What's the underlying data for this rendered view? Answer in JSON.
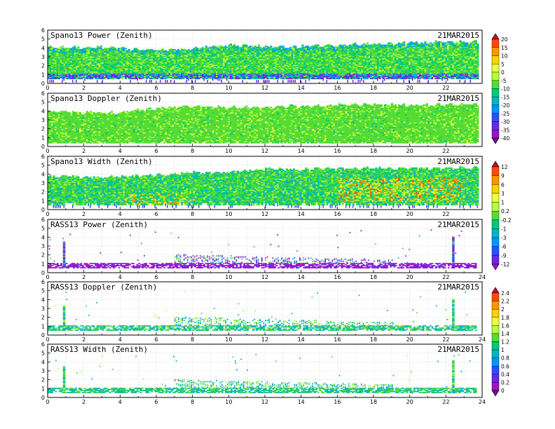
{
  "chart_data": [
    {
      "type": "heatmap",
      "title": "Spano13 Power (Zenith)",
      "date": "21MAR2015",
      "xlim": [
        0,
        24
      ],
      "ylim": [
        0,
        6
      ],
      "x_ticks": [
        "0",
        "2",
        "4",
        "6",
        "8",
        "10",
        "12",
        "14",
        "16",
        "18",
        "20",
        "22"
      ],
      "y_ticks": [
        "0",
        "1",
        "2",
        "3",
        "4",
        "5",
        "6"
      ],
      "grid": true,
      "top_height_km": [
        [
          0,
          3.9
        ],
        [
          2,
          3.9
        ],
        [
          4,
          3.9
        ],
        [
          6,
          3.6
        ],
        [
          8,
          3.8
        ],
        [
          10,
          4.2
        ],
        [
          12,
          4.0
        ],
        [
          14,
          4.0
        ],
        [
          16,
          4.2
        ],
        [
          18,
          4.3
        ],
        [
          20,
          4.4
        ],
        [
          22,
          4.6
        ],
        [
          23.7,
          4.6
        ]
      ],
      "bottom_height_km": 0.4,
      "dominant_value_range_db": [
        -25,
        -5
      ],
      "low_band_value_range_db": [
        -40,
        -30
      ]
    },
    {
      "type": "heatmap",
      "title": "Spano13 Doppler (Zenith)",
      "date": "21MAR2015",
      "xlim": [
        0,
        24
      ],
      "ylim": [
        0,
        6
      ],
      "x_ticks": [
        "0",
        "2",
        "4",
        "6",
        "8",
        "10",
        "12",
        "14",
        "16",
        "18",
        "20",
        "22"
      ],
      "y_ticks": [
        "0",
        "1",
        "2",
        "3",
        "4",
        "5",
        "6"
      ],
      "grid": true,
      "top_height_km": [
        [
          0,
          3.8
        ],
        [
          2,
          3.7
        ],
        [
          4,
          3.7
        ],
        [
          6,
          4.2
        ],
        [
          8,
          4.4
        ],
        [
          10,
          4.3
        ],
        [
          12,
          4.3
        ],
        [
          14,
          4.4
        ],
        [
          16,
          4.6
        ],
        [
          18,
          4.6
        ],
        [
          20,
          4.5
        ],
        [
          22,
          4.6
        ],
        [
          23.7,
          4.6
        ]
      ],
      "bottom_height_km": 0.3,
      "dominant_value_range": [
        -0.2,
        1
      ]
    },
    {
      "type": "heatmap",
      "title": "Spano13 Width (Zenith)",
      "date": "21MAR2015",
      "xlim": [
        0,
        24
      ],
      "ylim": [
        0,
        6
      ],
      "x_ticks": [
        "0",
        "2",
        "4",
        "6",
        "8",
        "10",
        "12",
        "14",
        "16",
        "18",
        "20",
        "22"
      ],
      "y_ticks": [
        "0",
        "1",
        "2",
        "3",
        "4",
        "5",
        "6"
      ],
      "grid": true,
      "top_height_km": [
        [
          0,
          3.7
        ],
        [
          2,
          3.5
        ],
        [
          4,
          3.6
        ],
        [
          6,
          3.8
        ],
        [
          8,
          4.0
        ],
        [
          10,
          4.1
        ],
        [
          12,
          4.4
        ],
        [
          14,
          4.4
        ],
        [
          16,
          4.5
        ],
        [
          18,
          4.5
        ],
        [
          20,
          4.5
        ],
        [
          22,
          4.6
        ],
        [
          23.7,
          4.6
        ]
      ],
      "bottom_height_km": 0.5,
      "dominant_value_range": [
        -1,
        3
      ],
      "high_value_region": {
        "x_range": [
          16,
          23
        ],
        "height_range_km": [
          0.8,
          3.5
        ],
        "value_range": [
          3,
          9
        ]
      }
    },
    {
      "type": "heatmap",
      "title": "RASS13 Power (Zenith)",
      "date": "21MAR2015",
      "xlim": [
        0,
        24
      ],
      "ylim": [
        0,
        6
      ],
      "x_ticks": [
        "0",
        "2",
        "4",
        "6",
        "8",
        "10",
        "12",
        "14",
        "16",
        "18",
        "20",
        "22",
        "24"
      ],
      "y_ticks": [
        "0",
        "1",
        "2",
        "3",
        "4",
        "5",
        "6"
      ],
      "grid": true,
      "band_height_km": [
        0.5,
        1.0
      ],
      "dense_layer_x_range": [
        7,
        19
      ],
      "dense_layer_top_km": 2.0,
      "columns": [
        {
          "x": 0.9,
          "top_km": 3.5
        },
        {
          "x": 22.4,
          "top_km": 4.1
        }
      ],
      "dominant_value_range": [
        -12,
        -3
      ]
    },
    {
      "type": "heatmap",
      "title": "RASS13 Doppler (Zenith)",
      "date": "21MAR2015",
      "xlim": [
        0,
        24
      ],
      "ylim": [
        0,
        6
      ],
      "x_ticks": [
        "0",
        "2",
        "4",
        "6",
        "8",
        "10",
        "12",
        "14",
        "16",
        "18",
        "20",
        "22",
        "24"
      ],
      "y_ticks": [
        "0",
        "1",
        "2",
        "3",
        "4",
        "5",
        "6"
      ],
      "grid": true,
      "band_height_km": [
        0.5,
        1.0
      ],
      "dense_layer_x_range": [
        7,
        19
      ],
      "dense_layer_top_km": 2.0,
      "columns": [
        {
          "x": 0.9,
          "top_km": 3.4
        },
        {
          "x": 22.4,
          "top_km": 4.1
        }
      ],
      "dominant_value_range": [
        0.8,
        1.4
      ]
    },
    {
      "type": "heatmap",
      "title": "RASS13 Width (Zenith)",
      "date": "21MAR2015",
      "xlim": [
        0,
        24
      ],
      "ylim": [
        0,
        6
      ],
      "x_ticks": [
        "0",
        "2",
        "4",
        "6",
        "8",
        "10",
        "12",
        "14",
        "16",
        "18",
        "20",
        "22",
        "24"
      ],
      "y_ticks": [
        "0",
        "1",
        "2",
        "3",
        "4",
        "5",
        "6"
      ],
      "grid": true,
      "band_height_km": [
        0.5,
        1.0
      ],
      "dense_layer_x_range": [
        7,
        19
      ],
      "dense_layer_top_km": 2.0,
      "columns": [
        {
          "x": 0.9,
          "top_km": 3.5
        },
        {
          "x": 22.4,
          "top_km": 4.2
        }
      ],
      "dominant_value_range": [
        0.8,
        1.4
      ]
    }
  ],
  "colorbars": [
    {
      "labels": [
        "20",
        "15",
        "10",
        "5",
        "0",
        "-5",
        "-10",
        "-15",
        "-20",
        "-25",
        "-30",
        "-35",
        "-40"
      ],
      "colors": [
        "#c8003c",
        "#ff4b00",
        "#ff9600",
        "#ffd200",
        "#f0ff3c",
        "#b4ff3c",
        "#55dc32",
        "#00c87d",
        "#00b4c8",
        "#0096ff",
        "#2850ff",
        "#6a28e6",
        "#9c14c8",
        "#7d00a0"
      ]
    },
    {
      "labels": [
        "12",
        "9",
        "6",
        "3",
        "1",
        "0.2",
        "-0.2",
        "-1",
        "-3",
        "-6",
        "-9",
        "-12"
      ],
      "colors": [
        "#c8003c",
        "#ff4b00",
        "#ff9600",
        "#ffd200",
        "#f0ff3c",
        "#b4ff3c",
        "#55dc32",
        "#00c87d",
        "#00b4c8",
        "#0096ff",
        "#2850ff",
        "#6a28e6",
        "#9c14c8"
      ]
    },
    {
      "labels": [
        "2.4",
        "2.2",
        "2",
        "1.8",
        "1.6",
        "1.4",
        "1.2",
        "1",
        "0.8",
        "0.6",
        "0.4",
        "0.2",
        "0"
      ],
      "colors": [
        "#c8003c",
        "#ff4b00",
        "#ff9600",
        "#ffd200",
        "#f0ff3c",
        "#b4ff3c",
        "#55dc32",
        "#00c87d",
        "#00b4c8",
        "#0096ff",
        "#2850ff",
        "#6a28e6",
        "#9c14c8",
        "#7d00a0"
      ]
    }
  ]
}
